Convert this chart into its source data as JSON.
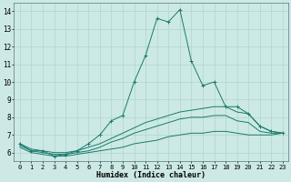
{
  "title": "",
  "xlabel": "Humidex (Indice chaleur)",
  "ylabel": "",
  "xlim": [
    -0.5,
    23.5
  ],
  "ylim": [
    5.5,
    14.5
  ],
  "yticks": [
    6,
    7,
    8,
    9,
    10,
    11,
    12,
    13,
    14
  ],
  "xticks": [
    0,
    1,
    2,
    3,
    4,
    5,
    6,
    7,
    8,
    9,
    10,
    11,
    12,
    13,
    14,
    15,
    16,
    17,
    18,
    19,
    20,
    21,
    22,
    23
  ],
  "background_color": "#cce9e5",
  "grid_color": "#b0d4d0",
  "line_color": "#1a7a6a",
  "lines": [
    {
      "x": [
        0,
        1,
        2,
        3,
        4,
        5,
        6,
        7,
        8,
        9,
        10,
        11,
        12,
        13,
        14,
        15,
        16,
        17,
        18,
        19,
        20,
        21,
        22,
        23
      ],
      "y": [
        6.5,
        6.1,
        6.1,
        5.8,
        5.9,
        6.1,
        6.5,
        7.0,
        7.8,
        8.1,
        10.0,
        11.5,
        13.6,
        13.4,
        14.1,
        11.2,
        9.8,
        10.0,
        8.6,
        8.6,
        8.2,
        7.5,
        7.2,
        7.1
      ],
      "marker": true
    },
    {
      "x": [
        0,
        1,
        2,
        3,
        4,
        5,
        6,
        7,
        8,
        9,
        10,
        11,
        12,
        13,
        14,
        15,
        16,
        17,
        18,
        19,
        20,
        21,
        22,
        23
      ],
      "y": [
        6.5,
        6.2,
        6.1,
        6.0,
        6.0,
        6.1,
        6.3,
        6.5,
        6.8,
        7.1,
        7.4,
        7.7,
        7.9,
        8.1,
        8.3,
        8.4,
        8.5,
        8.6,
        8.6,
        8.3,
        8.2,
        7.5,
        7.2,
        7.1
      ],
      "marker": false
    },
    {
      "x": [
        0,
        1,
        2,
        3,
        4,
        5,
        6,
        7,
        8,
        9,
        10,
        11,
        12,
        13,
        14,
        15,
        16,
        17,
        18,
        19,
        20,
        21,
        22,
        23
      ],
      "y": [
        6.4,
        6.1,
        6.0,
        5.9,
        5.9,
        6.0,
        6.1,
        6.3,
        6.6,
        6.8,
        7.1,
        7.3,
        7.5,
        7.7,
        7.9,
        8.0,
        8.0,
        8.1,
        8.1,
        7.8,
        7.7,
        7.2,
        7.1,
        7.1
      ],
      "marker": false
    },
    {
      "x": [
        0,
        1,
        2,
        3,
        4,
        5,
        6,
        7,
        8,
        9,
        10,
        11,
        12,
        13,
        14,
        15,
        16,
        17,
        18,
        19,
        20,
        21,
        22,
        23
      ],
      "y": [
        6.3,
        6.0,
        5.9,
        5.8,
        5.8,
        5.9,
        6.0,
        6.1,
        6.2,
        6.3,
        6.5,
        6.6,
        6.7,
        6.9,
        7.0,
        7.1,
        7.1,
        7.2,
        7.2,
        7.1,
        7.0,
        7.0,
        7.0,
        7.1
      ],
      "marker": false
    }
  ]
}
